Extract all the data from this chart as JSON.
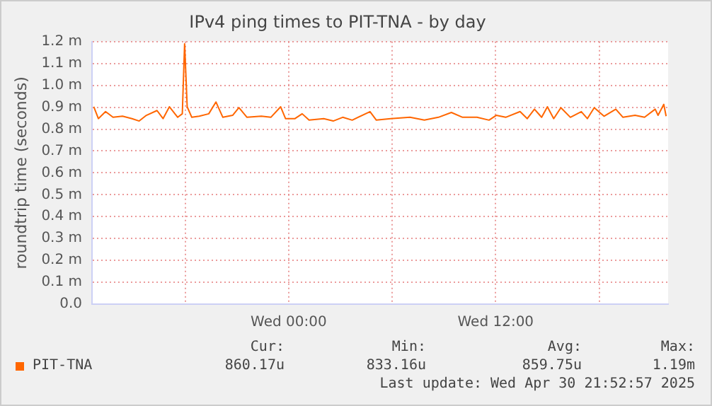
{
  "chart_data": {
    "type": "line",
    "title": "IPv4 ping times to PIT-TNA - by day",
    "ylabel": "roundtrip time (seconds)",
    "x": [
      "2025-04-29T12:42",
      "2025-04-29T12:58",
      "2025-04-29T13:23",
      "2025-04-29T13:49",
      "2025-04-29T14:22",
      "2025-04-29T14:55",
      "2025-04-29T15:20",
      "2025-04-29T15:45",
      "2025-04-29T16:22",
      "2025-04-29T16:43",
      "2025-04-29T17:05",
      "2025-04-29T17:34",
      "2025-04-29T17:50",
      "2025-04-29T17:58",
      "2025-04-29T18:07",
      "2025-04-29T18:23",
      "2025-04-29T18:49",
      "2025-04-29T19:22",
      "2025-04-29T19:47",
      "2025-04-29T20:11",
      "2025-04-29T20:45",
      "2025-04-29T21:07",
      "2025-04-29T21:35",
      "2025-04-29T22:25",
      "2025-04-29T22:58",
      "2025-04-29T23:32",
      "2025-04-29T23:49",
      "2025-04-30T00:22",
      "2025-04-30T00:47",
      "2025-04-30T01:11",
      "2025-04-30T02:02",
      "2025-04-30T02:35",
      "2025-04-30T03:08",
      "2025-04-30T03:41",
      "2025-04-30T04:43",
      "2025-04-30T05:05",
      "2025-04-30T05:55",
      "2025-04-30T07:02",
      "2025-04-30T07:52",
      "2025-04-30T08:41",
      "2025-04-30T09:26",
      "2025-04-30T10:05",
      "2025-04-30T10:55",
      "2025-04-30T11:37",
      "2025-04-30T12:02",
      "2025-04-30T12:35",
      "2025-04-30T13:25",
      "2025-04-30T13:50",
      "2025-04-30T14:15",
      "2025-04-30T14:40",
      "2025-04-30T15:00",
      "2025-04-30T15:22",
      "2025-04-30T15:47",
      "2025-04-30T16:20",
      "2025-04-30T16:58",
      "2025-04-30T17:19",
      "2025-04-30T17:43",
      "2025-04-30T18:17",
      "2025-04-30T18:58",
      "2025-04-30T19:23",
      "2025-04-30T20:05",
      "2025-04-30T20:38",
      "2025-04-30T21:15",
      "2025-04-30T21:25",
      "2025-04-30T21:45",
      "2025-04-30T21:53"
    ],
    "series": [
      {
        "name": "PIT-TNA",
        "color": "#ff6600",
        "values": [
          0.902,
          0.848,
          0.88,
          0.854,
          0.859,
          0.848,
          0.837,
          0.863,
          0.885,
          0.848,
          0.902,
          0.854,
          0.87,
          1.19,
          0.902,
          0.854,
          0.859,
          0.87,
          0.924,
          0.854,
          0.863,
          0.898,
          0.854,
          0.859,
          0.854,
          0.902,
          0.848,
          0.848,
          0.87,
          0.841,
          0.848,
          0.837,
          0.854,
          0.841,
          0.88,
          0.841,
          0.848,
          0.854,
          0.841,
          0.854,
          0.876,
          0.854,
          0.854,
          0.841,
          0.863,
          0.854,
          0.88,
          0.848,
          0.891,
          0.854,
          0.902,
          0.848,
          0.898,
          0.854,
          0.88,
          0.848,
          0.898,
          0.859,
          0.891,
          0.854,
          0.863,
          0.854,
          0.891,
          0.863,
          0.913,
          0.859
        ]
      }
    ],
    "xlim": [
      "2025-04-29T12:36",
      "2025-04-30T22:00"
    ],
    "xticks": [
      {
        "value": "2025-04-29T18:00",
        "label": null
      },
      {
        "value": "2025-04-30T00:00",
        "label": "Wed 00:00"
      },
      {
        "value": "2025-04-30T06:00",
        "label": null
      },
      {
        "value": "2025-04-30T12:00",
        "label": "Wed 12:00"
      },
      {
        "value": "2025-04-30T18:00",
        "label": null
      }
    ],
    "ylim": [
      0,
      1.2
    ],
    "yticks": [
      {
        "value": 0,
        "label": "0.0"
      },
      {
        "value": 0.1,
        "label": "0.1 m"
      },
      {
        "value": 0.2,
        "label": "0.2 m"
      },
      {
        "value": 0.3,
        "label": "0.3 m"
      },
      {
        "value": 0.4,
        "label": "0.4 m"
      },
      {
        "value": 0.5,
        "label": "0.5 m"
      },
      {
        "value": 0.6,
        "label": "0.6 m"
      },
      {
        "value": 0.7,
        "label": "0.7 m"
      },
      {
        "value": 0.8,
        "label": "0.8 m"
      },
      {
        "value": 0.9,
        "label": "0.9 m"
      },
      {
        "value": 1.0,
        "label": "1.0 m"
      },
      {
        "value": 1.1,
        "label": "1.1 m"
      },
      {
        "value": 1.2,
        "label": "1.2 m"
      }
    ],
    "grid": true,
    "legend": "bottom",
    "marker": "none",
    "line_style": "solid",
    "annotations": [
      "Cur:",
      "Min:",
      "Avg:",
      "Max:",
      "860.17u",
      "833.16u",
      "859.75u",
      "1.19m",
      "Last update: Wed Apr 30 21:52:57 2025"
    ]
  }
}
